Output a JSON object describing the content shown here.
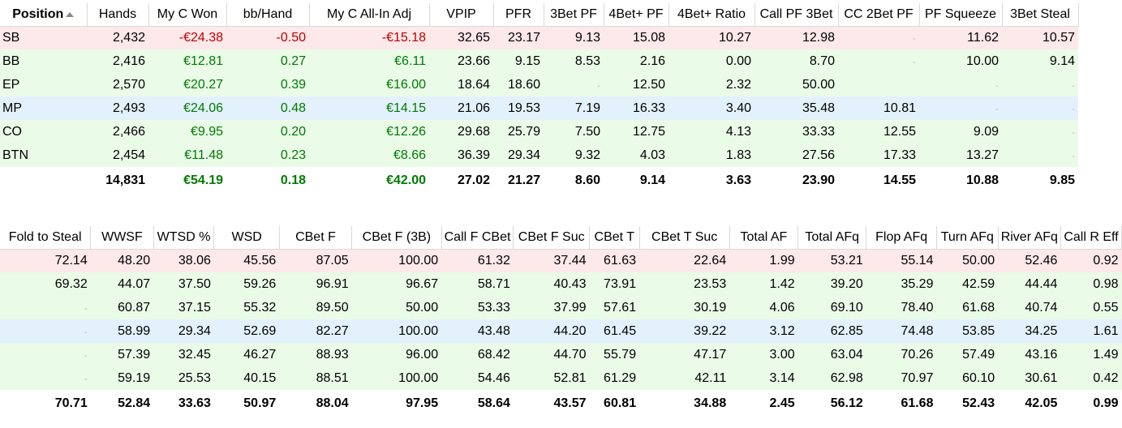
{
  "table1": {
    "headers": [
      "Position",
      "Hands",
      "My C Won",
      "bb/Hand",
      "My C All-In Adj",
      "VPIP",
      "PFR",
      "3Bet PF",
      "4Bet+ PF",
      "4Bet+ Ratio",
      "Call PF 3Bet",
      "CC 2Bet PF",
      "PF Squeeze",
      "3Bet Steal"
    ],
    "rows": [
      {
        "tint": "red",
        "cells": [
          "SB",
          "2,432",
          "-€24.38",
          "-0.50",
          "-€15.18",
          "32.65",
          "23.17",
          "9.13",
          "15.08",
          "10.27",
          "12.98",
          "-",
          "11.62",
          "10.57"
        ]
      },
      {
        "tint": "green",
        "cells": [
          "BB",
          "2,416",
          "€12.81",
          "0.27",
          "€6.11",
          "23.66",
          "9.15",
          "8.53",
          "2.16",
          "0.00",
          "8.70",
          "-",
          "10.00",
          "9.14"
        ]
      },
      {
        "tint": "green",
        "cells": [
          "EP",
          "2,570",
          "€20.27",
          "0.39",
          "€16.00",
          "18.64",
          "18.60",
          "-",
          "12.50",
          "2.32",
          "50.00",
          "",
          "-",
          "-"
        ]
      },
      {
        "tint": "blue",
        "cells": [
          "MP",
          "2,493",
          "€24.06",
          "0.48",
          "€14.15",
          "21.06",
          "19.53",
          "7.19",
          "16.33",
          "3.40",
          "35.48",
          "10.81",
          "-",
          "-"
        ]
      },
      {
        "tint": "green",
        "cells": [
          "CO",
          "2,466",
          "€9.95",
          "0.20",
          "€12.26",
          "29.68",
          "25.79",
          "7.50",
          "12.75",
          "4.13",
          "33.33",
          "12.55",
          "9.09",
          "-"
        ]
      },
      {
        "tint": "green",
        "cells": [
          "BTN",
          "2,454",
          "€11.48",
          "0.23",
          "€8.66",
          "36.39",
          "29.34",
          "9.32",
          "4.03",
          "1.83",
          "27.56",
          "17.33",
          "13.27",
          "-"
        ]
      }
    ],
    "totals": [
      "",
      "14,831",
      "€54.19",
      "0.18",
      "€42.00",
      "27.02",
      "21.27",
      "8.60",
      "9.14",
      "3.63",
      "23.90",
      "14.55",
      "10.88",
      "9.85"
    ]
  },
  "table2": {
    "headers": [
      "Fold to Steal",
      "WWSF",
      "WTSD %",
      "WSD",
      "CBet F",
      "CBet F (3B)",
      "Call F CBet",
      "CBet F Suc",
      "CBet T",
      "CBet T Suc",
      "Total AF",
      "Total AFq",
      "Flop AFq",
      "Turn AFq",
      "River AFq",
      "Call R Eff"
    ],
    "rows": [
      {
        "tint": "red",
        "cells": [
          "72.14",
          "48.20",
          "38.06",
          "45.56",
          "87.05",
          "100.00",
          "61.32",
          "37.44",
          "61.63",
          "22.64",
          "1.99",
          "53.21",
          "55.14",
          "50.00",
          "52.46",
          "0.92"
        ]
      },
      {
        "tint": "green",
        "cells": [
          "69.32",
          "44.07",
          "37.50",
          "59.26",
          "96.91",
          "96.67",
          "58.71",
          "40.43",
          "73.91",
          "23.53",
          "1.42",
          "39.20",
          "35.29",
          "42.59",
          "44.44",
          "0.98"
        ]
      },
      {
        "tint": "green",
        "cells": [
          "-",
          "60.87",
          "37.15",
          "55.32",
          "89.50",
          "50.00",
          "53.33",
          "37.99",
          "57.61",
          "30.19",
          "4.06",
          "69.10",
          "78.40",
          "61.68",
          "40.74",
          "0.55"
        ]
      },
      {
        "tint": "blue",
        "cells": [
          "-",
          "58.99",
          "29.34",
          "52.69",
          "82.27",
          "100.00",
          "43.48",
          "44.20",
          "61.45",
          "39.22",
          "3.12",
          "62.85",
          "74.48",
          "53.85",
          "34.25",
          "1.61"
        ]
      },
      {
        "tint": "green",
        "cells": [
          "-",
          "57.39",
          "32.45",
          "46.27",
          "88.93",
          "96.00",
          "68.42",
          "44.70",
          "55.79",
          "47.17",
          "3.00",
          "63.04",
          "70.26",
          "57.49",
          "43.16",
          "1.49"
        ]
      },
      {
        "tint": "green",
        "cells": [
          "-",
          "59.19",
          "25.53",
          "40.15",
          "88.51",
          "100.00",
          "54.46",
          "52.81",
          "61.29",
          "42.11",
          "3.14",
          "62.98",
          "70.97",
          "60.10",
          "30.61",
          "0.42"
        ]
      }
    ],
    "totals": [
      "70.71",
      "52.84",
      "33.63",
      "50.97",
      "88.04",
      "97.95",
      "58.64",
      "43.57",
      "60.81",
      "34.88",
      "2.45",
      "56.12",
      "61.68",
      "52.43",
      "42.05",
      "0.99"
    ]
  },
  "colors": {
    "negative": "#c00000",
    "positive_money": "#007a00",
    "row_red": "#fde8ea",
    "row_green": "#eafbe8",
    "row_blue": "#e3f1fc"
  },
  "icons": {
    "sort": "sort-ascending-icon"
  }
}
